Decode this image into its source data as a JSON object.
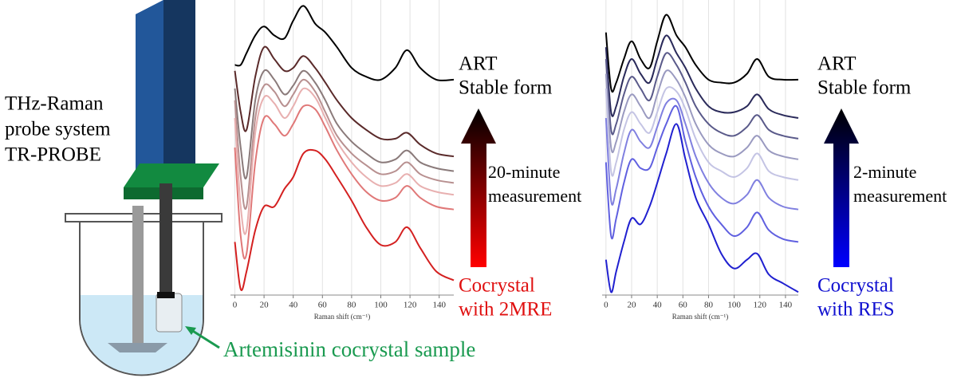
{
  "apparatus": {
    "probe_label": [
      "THz-Raman",
      "probe system",
      "TR-PROBE"
    ],
    "sample_label": "Artemisinin cocrystal sample"
  },
  "chart_data": [
    {
      "type": "line",
      "xlabel": "Raman shift (cm⁻¹)",
      "x": [
        0,
        4,
        8,
        14,
        20,
        27,
        34,
        40,
        47,
        55,
        62,
        70,
        80,
        90,
        100,
        110,
        118,
        127,
        138,
        150
      ],
      "xlim": [
        -3,
        150
      ],
      "xticks": [
        0,
        20,
        40,
        60,
        80,
        100,
        120,
        140
      ],
      "ylim": [
        0,
        100
      ],
      "grid": true,
      "top_label": [
        "ART",
        "Stable form"
      ],
      "arrow_label": [
        "20-minute",
        "measurement"
      ],
      "bottom_label": [
        "Cocrystal",
        "with 2MRE"
      ],
      "bottom_color": "#e01010",
      "series": [
        {
          "color": "#000000",
          "values": [
            78,
            78,
            82,
            88,
            91,
            88,
            87,
            93,
            98,
            92,
            89,
            84,
            77,
            74,
            73,
            77,
            83,
            77,
            73,
            73
          ]
        },
        {
          "color": "#5a2a2a",
          "values": [
            76,
            62,
            56,
            74,
            84,
            80,
            76,
            77,
            81,
            77,
            72,
            66,
            60,
            56,
            53,
            53,
            55,
            51,
            48,
            47
          ]
        },
        {
          "color": "#8a7a7a",
          "values": [
            70,
            50,
            40,
            66,
            76,
            73,
            68,
            71,
            76,
            72,
            66,
            58,
            52,
            48,
            45,
            46,
            49,
            45,
            43,
            42
          ]
        },
        {
          "color": "#b89090",
          "values": [
            66,
            40,
            30,
            60,
            71,
            69,
            64,
            68,
            73,
            69,
            62,
            54,
            48,
            44,
            41,
            42,
            45,
            41,
            39,
            38
          ]
        },
        {
          "color": "#e8b0b0",
          "values": [
            60,
            30,
            22,
            55,
            67,
            65,
            60,
            64,
            70,
            67,
            60,
            52,
            45,
            40,
            37,
            38,
            41,
            37,
            35,
            34
          ]
        },
        {
          "color": "#e07878",
          "values": [
            50,
            20,
            14,
            45,
            60,
            58,
            54,
            58,
            64,
            63,
            57,
            49,
            41,
            35,
            32,
            33,
            37,
            33,
            30,
            29
          ]
        },
        {
          "color": "#d42020",
          "values": [
            18,
            2,
            8,
            22,
            30,
            30,
            36,
            40,
            48,
            49,
            46,
            40,
            32,
            23,
            17,
            18,
            23,
            16,
            8,
            5
          ]
        }
      ]
    },
    {
      "type": "line",
      "xlabel": "Raman shift (cm⁻¹)",
      "x": [
        0,
        4,
        8,
        14,
        20,
        27,
        34,
        40,
        47,
        55,
        62,
        70,
        80,
        90,
        100,
        110,
        118,
        127,
        138,
        150
      ],
      "xlim": [
        -3,
        150
      ],
      "xticks": [
        0,
        20,
        40,
        60,
        80,
        100,
        120,
        140
      ],
      "ylim": [
        0,
        100
      ],
      "grid": true,
      "top_label": [
        "ART",
        "Stable form"
      ],
      "arrow_label": [
        "2-minute",
        "measurement"
      ],
      "bottom_label": [
        "Cocrystal",
        "with RES"
      ],
      "bottom_color": "#1010d0",
      "series": [
        {
          "color": "#000000",
          "values": [
            89,
            70,
            72,
            80,
            86,
            80,
            77,
            86,
            95,
            88,
            84,
            78,
            73,
            72,
            72,
            75,
            80,
            74,
            73,
            73
          ]
        },
        {
          "color": "#2a2a5a",
          "values": [
            84,
            62,
            64,
            74,
            80,
            75,
            72,
            80,
            88,
            82,
            77,
            70,
            64,
            62,
            62,
            64,
            68,
            63,
            61,
            60
          ]
        },
        {
          "color": "#5a5a8a",
          "values": [
            80,
            56,
            58,
            68,
            74,
            70,
            66,
            74,
            82,
            78,
            72,
            64,
            58,
            55,
            54,
            57,
            61,
            56,
            54,
            53
          ]
        },
        {
          "color": "#9a9ac0",
          "values": [
            75,
            50,
            52,
            62,
            68,
            64,
            60,
            68,
            76,
            73,
            67,
            58,
            51,
            48,
            47,
            50,
            54,
            49,
            47,
            46
          ]
        },
        {
          "color": "#c4c4e4",
          "values": [
            70,
            42,
            45,
            56,
            62,
            58,
            55,
            62,
            70,
            69,
            63,
            53,
            45,
            42,
            40,
            43,
            48,
            42,
            40,
            39
          ]
        },
        {
          "color": "#8080e0",
          "values": [
            60,
            32,
            36,
            48,
            56,
            52,
            50,
            57,
            65,
            66,
            58,
            47,
            38,
            33,
            31,
            34,
            39,
            33,
            30,
            29
          ]
        },
        {
          "color": "#6060e0",
          "values": [
            45,
            20,
            26,
            38,
            46,
            43,
            43,
            50,
            58,
            64,
            52,
            40,
            30,
            24,
            20,
            23,
            28,
            22,
            19,
            18
          ]
        },
        {
          "color": "#2020d0",
          "values": [
            12,
            1,
            8,
            18,
            26,
            24,
            30,
            38,
            48,
            58,
            46,
            33,
            24,
            14,
            9,
            12,
            14,
            7,
            4,
            1
          ]
        }
      ]
    }
  ]
}
